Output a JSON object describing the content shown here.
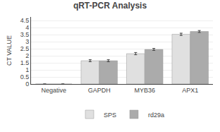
{
  "chart_data": {
    "type": "bar",
    "title": "qRT-PCR Analysis",
    "ylabel": "CT VALUE",
    "categories": [
      "Negative",
      "GAPDH",
      "MYB36",
      "APX1"
    ],
    "series": [
      {
        "name": "SPS",
        "color": "#e0e0e0",
        "values": [
          0.0,
          1.65,
          2.15,
          3.52
        ],
        "errors": [
          0.0,
          0.07,
          0.08,
          0.08
        ]
      },
      {
        "name": "rd29a",
        "color": "#ababab",
        "values": [
          0.0,
          1.65,
          2.45,
          3.72
        ],
        "errors": [
          0.0,
          0.07,
          0.07,
          0.07
        ]
      }
    ],
    "ylim": [
      0,
      4.75
    ],
    "yticks": [
      0,
      0.5,
      1,
      1.5,
      2,
      2.5,
      3,
      3.5,
      4,
      4.5
    ],
    "grid": true,
    "legend": "bottom"
  }
}
